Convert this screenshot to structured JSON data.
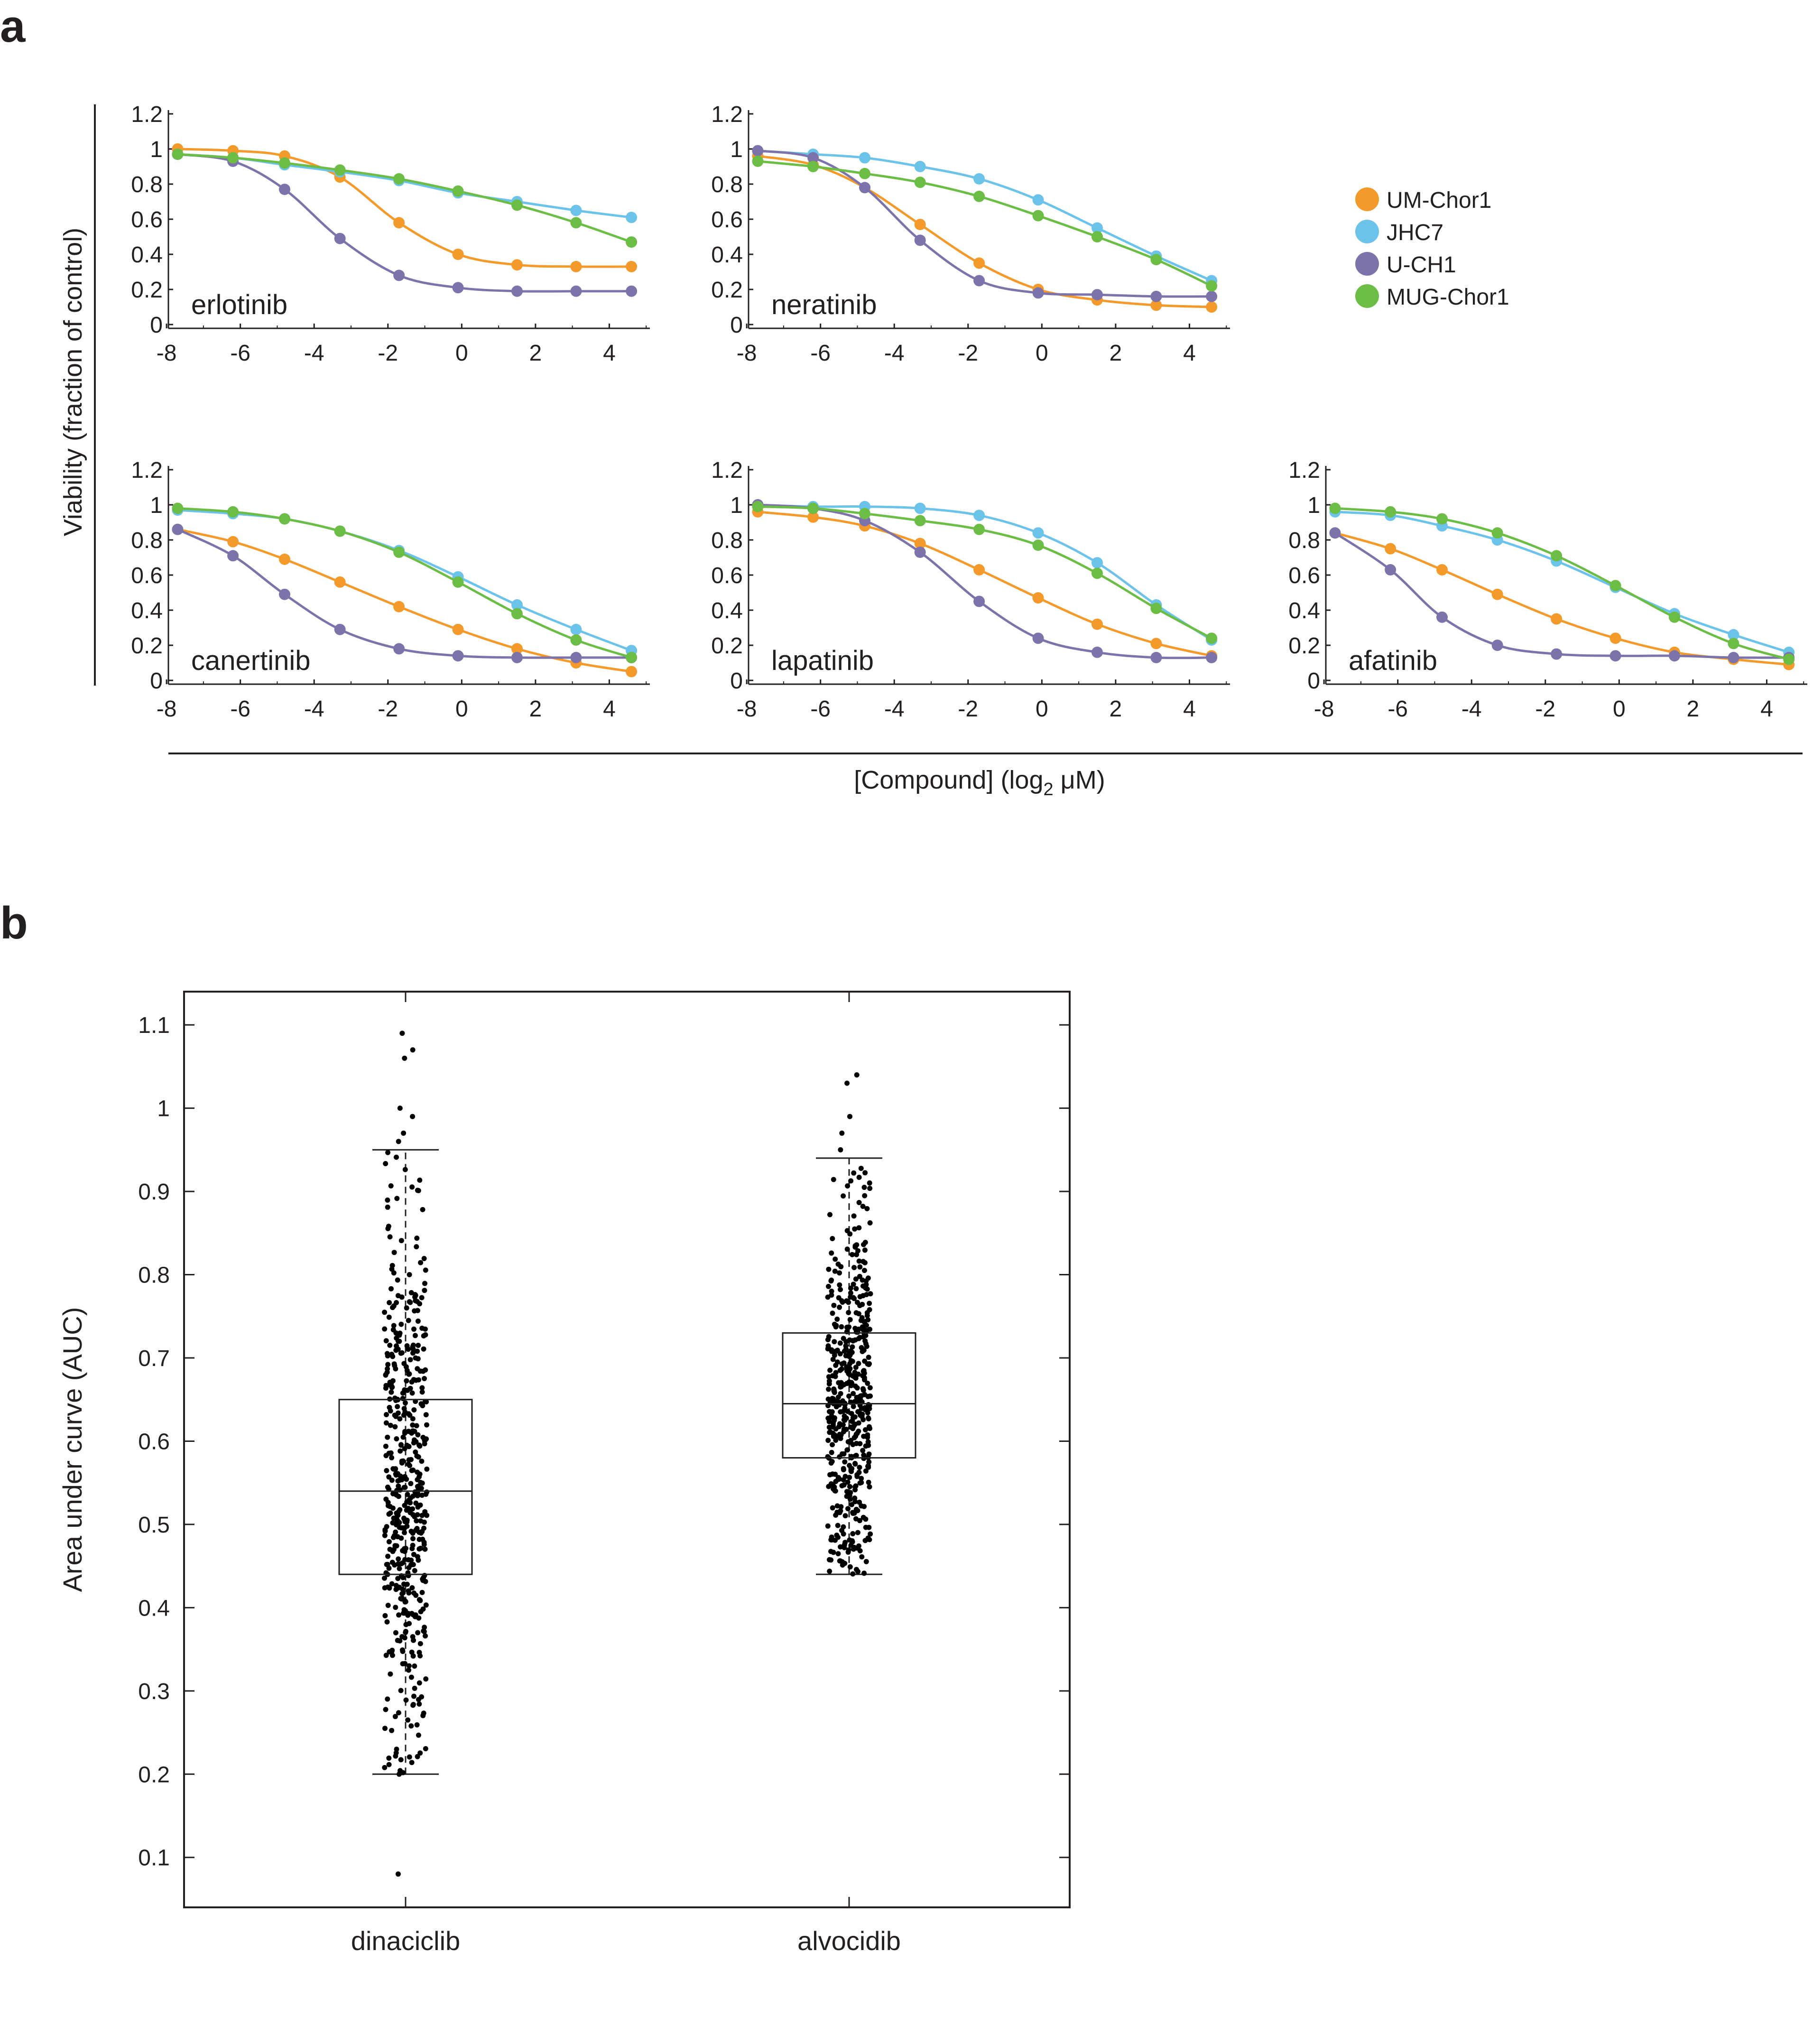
{
  "panels": {
    "a": "a",
    "b": "b"
  },
  "colors": {
    "UM-Chor1": "#f39a2b",
    "JHC7": "#6cc3ea",
    "U-CH1": "#7d73ab",
    "MUG-Chor1": "#6bbd45",
    "axis": "#231f20",
    "points": "#000000"
  },
  "panel_a": {
    "ylabel": "Viability (fraction of control)",
    "xlabel_main": "[Compound] (log",
    "xlabel_sub": "2",
    "xlabel_end": " μM)",
    "legend": [
      "UM-Chor1",
      "JHC7",
      "U-CH1",
      "MUG-Chor1"
    ],
    "xticks": [
      "-8",
      "-6",
      "-4",
      "-2",
      "0",
      "2",
      "4"
    ],
    "yticks": [
      "0",
      "0.2",
      "0.4",
      "0.6",
      "0.8",
      "1",
      "1.2"
    ]
  },
  "panel_b": {
    "ylabel": "Area under curve (AUC)",
    "yticks": [
      "0.1",
      "0.2",
      "0.3",
      "0.4",
      "0.5",
      "0.6",
      "0.7",
      "0.8",
      "0.9",
      "1",
      "1.1"
    ],
    "categories": [
      "dinaciclib",
      "alvocidib"
    ]
  },
  "chart_data": [
    {
      "type": "line",
      "title": "erlotinib",
      "xlabel": "[Compound] (log2 μM)",
      "ylabel": "Viability (fraction of control)",
      "xlim": [
        -8,
        5
      ],
      "ylim": [
        0,
        1.2
      ],
      "x": [
        -7.7,
        -6.2,
        -4.8,
        -3.3,
        -1.7,
        -0.1,
        1.5,
        3.1,
        4.6
      ],
      "series": [
        {
          "name": "UM-Chor1",
          "values": [
            1.0,
            0.99,
            0.96,
            0.84,
            0.58,
            0.4,
            0.34,
            0.33,
            0.33
          ]
        },
        {
          "name": "JHC7",
          "values": [
            0.97,
            0.95,
            0.91,
            0.87,
            0.82,
            0.75,
            0.7,
            0.65,
            0.61
          ]
        },
        {
          "name": "U-CH1",
          "values": [
            0.97,
            0.93,
            0.77,
            0.49,
            0.28,
            0.21,
            0.19,
            0.19,
            0.19
          ]
        },
        {
          "name": "MUG-Chor1",
          "values": [
            0.97,
            0.95,
            0.92,
            0.88,
            0.83,
            0.76,
            0.68,
            0.58,
            0.47
          ]
        }
      ]
    },
    {
      "type": "line",
      "title": "neratinib",
      "xlabel": "[Compound] (log2 μM)",
      "ylabel": "Viability (fraction of control)",
      "xlim": [
        -8,
        5
      ],
      "ylim": [
        0,
        1.2
      ],
      "x": [
        -7.7,
        -6.2,
        -4.8,
        -3.3,
        -1.7,
        -0.1,
        1.5,
        3.1,
        4.6
      ],
      "series": [
        {
          "name": "UM-Chor1",
          "values": [
            0.96,
            0.91,
            0.78,
            0.57,
            0.35,
            0.2,
            0.14,
            0.11,
            0.1
          ]
        },
        {
          "name": "JHC7",
          "values": [
            0.99,
            0.97,
            0.95,
            0.9,
            0.83,
            0.71,
            0.55,
            0.39,
            0.25
          ]
        },
        {
          "name": "U-CH1",
          "values": [
            0.99,
            0.95,
            0.78,
            0.48,
            0.25,
            0.18,
            0.17,
            0.16,
            0.16
          ]
        },
        {
          "name": "MUG-Chor1",
          "values": [
            0.93,
            0.9,
            0.86,
            0.81,
            0.73,
            0.62,
            0.5,
            0.37,
            0.22
          ]
        }
      ]
    },
    {
      "type": "line",
      "title": "canertinib",
      "xlabel": "[Compound] (log2 μM)",
      "ylabel": "Viability (fraction of control)",
      "xlim": [
        -8,
        5
      ],
      "ylim": [
        0,
        1.2
      ],
      "x": [
        -7.7,
        -6.2,
        -4.8,
        -3.3,
        -1.7,
        -0.1,
        1.5,
        3.1,
        4.6
      ],
      "series": [
        {
          "name": "UM-Chor1",
          "values": [
            0.86,
            0.79,
            0.69,
            0.56,
            0.42,
            0.29,
            0.18,
            0.1,
            0.05
          ]
        },
        {
          "name": "JHC7",
          "values": [
            0.97,
            0.95,
            0.92,
            0.85,
            0.74,
            0.59,
            0.43,
            0.29,
            0.17
          ]
        },
        {
          "name": "U-CH1",
          "values": [
            0.86,
            0.71,
            0.49,
            0.29,
            0.18,
            0.14,
            0.13,
            0.13,
            0.13
          ]
        },
        {
          "name": "MUG-Chor1",
          "values": [
            0.98,
            0.96,
            0.92,
            0.85,
            0.73,
            0.56,
            0.38,
            0.23,
            0.13
          ]
        }
      ]
    },
    {
      "type": "line",
      "title": "lapatinib",
      "xlabel": "[Compound] (log2 μM)",
      "ylabel": "Viability (fraction of control)",
      "xlim": [
        -8,
        5
      ],
      "ylim": [
        0,
        1.2
      ],
      "x": [
        -7.7,
        -6.2,
        -4.8,
        -3.3,
        -1.7,
        -0.1,
        1.5,
        3.1,
        4.6
      ],
      "series": [
        {
          "name": "UM-Chor1",
          "values": [
            0.96,
            0.93,
            0.88,
            0.78,
            0.63,
            0.47,
            0.32,
            0.21,
            0.14
          ]
        },
        {
          "name": "JHC7",
          "values": [
            1.0,
            0.99,
            0.99,
            0.98,
            0.94,
            0.84,
            0.67,
            0.43,
            0.23
          ]
        },
        {
          "name": "U-CH1",
          "values": [
            1.0,
            0.98,
            0.91,
            0.73,
            0.45,
            0.24,
            0.16,
            0.13,
            0.13
          ]
        },
        {
          "name": "MUG-Chor1",
          "values": [
            0.99,
            0.98,
            0.95,
            0.91,
            0.86,
            0.77,
            0.61,
            0.41,
            0.24
          ]
        }
      ]
    },
    {
      "type": "line",
      "title": "afatinib",
      "xlabel": "[Compound] (log2 μM)",
      "ylabel": "Viability (fraction of control)",
      "xlim": [
        -8,
        5
      ],
      "ylim": [
        0,
        1.2
      ],
      "x": [
        -7.7,
        -6.2,
        -4.8,
        -3.3,
        -1.7,
        -0.1,
        1.5,
        3.1,
        4.6
      ],
      "series": [
        {
          "name": "UM-Chor1",
          "values": [
            0.84,
            0.75,
            0.63,
            0.49,
            0.35,
            0.24,
            0.16,
            0.12,
            0.09
          ]
        },
        {
          "name": "JHC7",
          "values": [
            0.96,
            0.94,
            0.88,
            0.8,
            0.68,
            0.53,
            0.38,
            0.26,
            0.16
          ]
        },
        {
          "name": "U-CH1",
          "values": [
            0.84,
            0.63,
            0.36,
            0.2,
            0.15,
            0.14,
            0.14,
            0.13,
            0.13
          ]
        },
        {
          "name": "MUG-Chor1",
          "values": [
            0.98,
            0.96,
            0.92,
            0.84,
            0.71,
            0.54,
            0.36,
            0.21,
            0.12
          ]
        }
      ]
    },
    {
      "type": "box",
      "title": "",
      "xlabel": "",
      "ylabel": "Area under curve (AUC)",
      "ylim": [
        0.05,
        1.15
      ],
      "categories": [
        "dinaciclib",
        "alvocidib"
      ],
      "boxes": [
        {
          "name": "dinaciclib",
          "whisker_low": 0.2,
          "q1": 0.44,
          "median": 0.54,
          "q3": 0.65,
          "whisker_high": 0.95,
          "outliers": [
            0.08,
            0.2,
            0.96,
            0.97,
            0.99,
            1.0,
            1.06,
            1.07,
            1.09
          ],
          "n_points": 500
        },
        {
          "name": "alvocidib",
          "whisker_low": 0.44,
          "q1": 0.58,
          "median": 0.645,
          "q3": 0.73,
          "whisker_high": 0.94,
          "outliers": [
            0.95,
            0.97,
            0.99,
            1.03,
            1.04
          ],
          "n_points": 500
        }
      ]
    }
  ]
}
